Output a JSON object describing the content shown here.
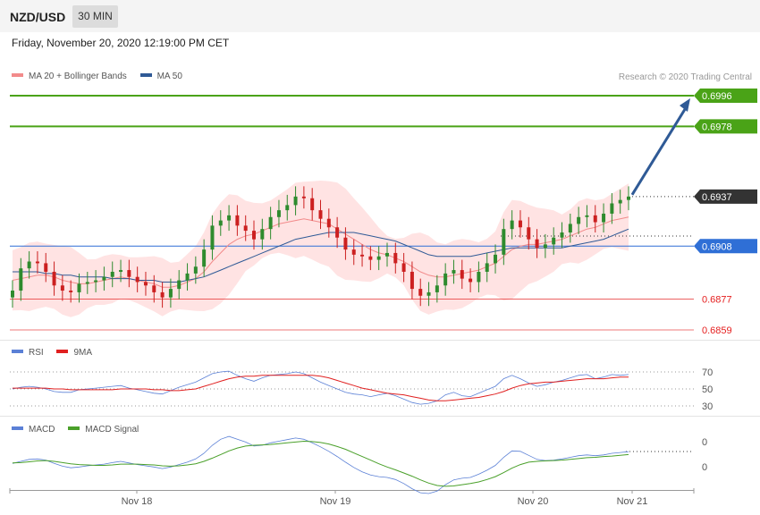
{
  "header": {
    "pair": "NZD/USD",
    "timeframe": "30 MIN"
  },
  "date": "Friday, November 20, 2020 12:19:00 PM CET",
  "credit": "Research © 2020 Trading Central",
  "legend_price": [
    {
      "label": "MA 20 + Bollinger Bands",
      "color": "#f28b8b"
    },
    {
      "label": "MA 50",
      "color": "#2f5a96"
    }
  ],
  "legend_rsi": [
    {
      "label": "RSI",
      "color": "#5b80d6"
    },
    {
      "label": "9MA",
      "color": "#e02020"
    }
  ],
  "legend_macd": [
    {
      "label": "MACD",
      "color": "#5b80d6"
    },
    {
      "label": "MACD Signal",
      "color": "#4aa02a"
    }
  ],
  "colors": {
    "up": "#2e8b2e",
    "down": "#cc2020",
    "bb_fill": "#ffd9d9",
    "forecast": "#2f5a96"
  },
  "chart_data": [
    {
      "type": "candlestick",
      "panel": "price",
      "ylim": [
        0.6849,
        0.7002
      ],
      "levels": [
        {
          "value": "0.6996",
          "y": 0.6996,
          "kind": "resistance",
          "color": "#4aa317"
        },
        {
          "value": "0.6978",
          "y": 0.6978,
          "kind": "resistance",
          "color": "#4aa317"
        },
        {
          "value": "0.6937",
          "y": 0.6937,
          "kind": "last_price",
          "color": "#333333"
        },
        {
          "value": "0.6908",
          "y": 0.6908,
          "kind": "pivot",
          "color": "#2f6fd6"
        },
        {
          "value": "0.6877",
          "y": 0.6877,
          "kind": "support",
          "color": "#e52020"
        },
        {
          "value": "0.6859",
          "y": 0.6859,
          "kind": "support",
          "color": "#e52020"
        }
      ],
      "x_ticks": [
        "Nov 18",
        "Nov 19",
        "Nov 20",
        "Nov 21"
      ],
      "close": [
        0.6882,
        0.6895,
        0.6899,
        0.6898,
        0.6893,
        0.6885,
        0.6882,
        0.6881,
        0.6886,
        0.6887,
        0.6888,
        0.689,
        0.6893,
        0.6894,
        0.689,
        0.6887,
        0.6885,
        0.6881,
        0.6878,
        0.6883,
        0.6888,
        0.6892,
        0.6896,
        0.6906,
        0.692,
        0.6923,
        0.6926,
        0.692,
        0.6917,
        0.6912,
        0.6918,
        0.6925,
        0.6929,
        0.6932,
        0.6937,
        0.6936,
        0.6929,
        0.6924,
        0.6919,
        0.6913,
        0.6906,
        0.6903,
        0.6902,
        0.69,
        0.6902,
        0.6904,
        0.6898,
        0.6893,
        0.6883,
        0.6879,
        0.6881,
        0.6885,
        0.6892,
        0.6894,
        0.6889,
        0.6887,
        0.6893,
        0.6898,
        0.6903,
        0.6918,
        0.6923,
        0.6919,
        0.6912,
        0.6907,
        0.6909,
        0.6913,
        0.6916,
        0.6921,
        0.6925,
        0.6926,
        0.6922,
        0.6927,
        0.6933,
        0.6935,
        0.6937
      ],
      "ma20": [
        0.6888,
        0.6889,
        0.689,
        0.6891,
        0.6891,
        0.689,
        0.6888,
        0.6887,
        0.6886,
        0.6886,
        0.6887,
        0.6888,
        0.6889,
        0.689,
        0.6889,
        0.6888,
        0.6887,
        0.6886,
        0.6884,
        0.6884,
        0.6885,
        0.6887,
        0.6889,
        0.6893,
        0.6899,
        0.6904,
        0.6909,
        0.6912,
        0.6914,
        0.6915,
        0.6917,
        0.6919,
        0.6921,
        0.6922,
        0.6923,
        0.6924,
        0.6923,
        0.6922,
        0.6921,
        0.6918,
        0.6915,
        0.6912,
        0.6909,
        0.6906,
        0.6904,
        0.6903,
        0.6901,
        0.6899,
        0.6896,
        0.6893,
        0.6891,
        0.689,
        0.689,
        0.6891,
        0.6892,
        0.6893,
        0.6894,
        0.6896,
        0.6898,
        0.6902,
        0.6906,
        0.6908,
        0.6909,
        0.6909,
        0.691,
        0.6911,
        0.6912,
        0.6914,
        0.6916,
        0.6918,
        0.6919,
        0.6921,
        0.6923,
        0.6924,
        0.6925
      ],
      "ma50": [
        0.6893,
        0.6893,
        0.6893,
        0.6893,
        0.6892,
        0.6892,
        0.6891,
        0.6891,
        0.689,
        0.689,
        0.689,
        0.689,
        0.6889,
        0.6889,
        0.6889,
        0.6888,
        0.6888,
        0.6888,
        0.6887,
        0.6887,
        0.6887,
        0.6888,
        0.6889,
        0.689,
        0.6892,
        0.6894,
        0.6896,
        0.6898,
        0.69,
        0.6902,
        0.6904,
        0.6906,
        0.6908,
        0.691,
        0.6912,
        0.6913,
        0.6914,
        0.6915,
        0.6916,
        0.6916,
        0.6916,
        0.6916,
        0.6915,
        0.6914,
        0.6913,
        0.6912,
        0.6911,
        0.6909,
        0.6907,
        0.6905,
        0.6903,
        0.6902,
        0.6902,
        0.6902,
        0.6902,
        0.6902,
        0.6903,
        0.6904,
        0.6905,
        0.6906,
        0.6907,
        0.6907,
        0.6907,
        0.6907,
        0.6907,
        0.6907,
        0.6907,
        0.6908,
        0.6909,
        0.691,
        0.6911,
        0.6912,
        0.6914,
        0.6916,
        0.6918
      ]
    },
    {
      "type": "line",
      "panel": "RSI",
      "ylim": [
        25,
        80
      ],
      "y_ticks": [
        "70",
        "50",
        "30"
      ],
      "series": [
        {
          "name": "RSI",
          "values": [
            50,
            52,
            53,
            52,
            50,
            47,
            46,
            46,
            49,
            50,
            51,
            52,
            53,
            54,
            51,
            49,
            47,
            45,
            44,
            48,
            52,
            55,
            58,
            63,
            68,
            70,
            71,
            66,
            62,
            59,
            63,
            66,
            67,
            68,
            70,
            68,
            63,
            58,
            54,
            50,
            46,
            44,
            43,
            41,
            43,
            45,
            42,
            38,
            34,
            32,
            33,
            36,
            43,
            46,
            42,
            41,
            45,
            49,
            53,
            62,
            66,
            62,
            57,
            53,
            55,
            58,
            60,
            63,
            66,
            67,
            62,
            64,
            67,
            66,
            67
          ]
        },
        {
          "name": "9MA",
          "values": [
            51,
            51,
            51,
            51,
            51,
            50,
            50,
            49,
            49,
            49,
            49,
            49,
            49,
            50,
            50,
            50,
            50,
            49,
            49,
            48,
            48,
            49,
            50,
            53,
            56,
            59,
            62,
            64,
            65,
            65,
            66,
            66,
            66,
            66,
            66,
            66,
            66,
            65,
            63,
            60,
            57,
            54,
            51,
            49,
            47,
            45,
            44,
            43,
            41,
            39,
            37,
            36,
            36,
            37,
            38,
            39,
            40,
            42,
            44,
            47,
            51,
            54,
            56,
            57,
            58,
            58,
            59,
            60,
            61,
            62,
            62,
            62,
            63,
            64,
            64
          ]
        }
      ]
    },
    {
      "type": "line",
      "panel": "MACD",
      "ylim": [
        -1,
        1
      ],
      "y_ticks": [
        "0",
        "0"
      ],
      "series": [
        {
          "name": "MACD",
          "values": [
            -0.05,
            0.0,
            0.05,
            0.06,
            0.03,
            -0.05,
            -0.12,
            -0.16,
            -0.14,
            -0.11,
            -0.09,
            -0.07,
            -0.03,
            0.0,
            -0.04,
            -0.08,
            -0.11,
            -0.14,
            -0.18,
            -0.14,
            -0.08,
            -0.02,
            0.06,
            0.2,
            0.4,
            0.55,
            0.62,
            0.55,
            0.48,
            0.38,
            0.4,
            0.46,
            0.5,
            0.54,
            0.58,
            0.55,
            0.46,
            0.36,
            0.25,
            0.12,
            -0.02,
            -0.15,
            -0.26,
            -0.34,
            -0.38,
            -0.4,
            -0.45,
            -0.55,
            -0.68,
            -0.78,
            -0.8,
            -0.74,
            -0.58,
            -0.46,
            -0.42,
            -0.4,
            -0.32,
            -0.22,
            -0.1,
            0.1,
            0.26,
            0.25,
            0.15,
            0.05,
            0.02,
            0.03,
            0.06,
            0.1,
            0.14,
            0.16,
            0.14,
            0.16,
            0.2,
            0.22,
            0.24
          ]
        },
        {
          "name": "MACD Signal",
          "values": [
            -0.04,
            -0.03,
            -0.01,
            0.01,
            0.02,
            0.0,
            -0.03,
            -0.06,
            -0.08,
            -0.09,
            -0.1,
            -0.1,
            -0.09,
            -0.07,
            -0.07,
            -0.07,
            -0.08,
            -0.09,
            -0.11,
            -0.12,
            -0.11,
            -0.09,
            -0.06,
            0.0,
            0.08,
            0.17,
            0.26,
            0.33,
            0.38,
            0.4,
            0.41,
            0.42,
            0.44,
            0.46,
            0.48,
            0.5,
            0.49,
            0.47,
            0.43,
            0.37,
            0.3,
            0.21,
            0.12,
            0.03,
            -0.06,
            -0.14,
            -0.21,
            -0.29,
            -0.37,
            -0.46,
            -0.54,
            -0.6,
            -0.62,
            -0.61,
            -0.58,
            -0.55,
            -0.51,
            -0.45,
            -0.38,
            -0.28,
            -0.17,
            -0.08,
            -0.02,
            0.0,
            0.01,
            0.02,
            0.03,
            0.05,
            0.07,
            0.09,
            0.1,
            0.12,
            0.13,
            0.15,
            0.17
          ]
        }
      ]
    }
  ]
}
